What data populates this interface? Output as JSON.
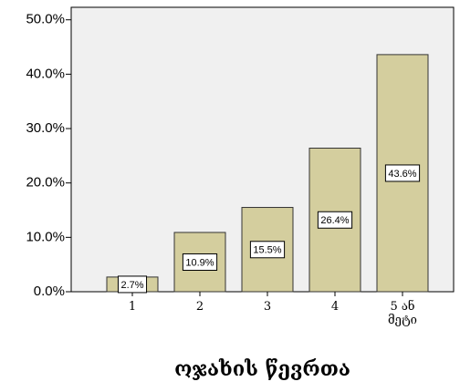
{
  "chart_data": {
    "type": "bar",
    "x_label": "ოჯახის წევრთა",
    "categories": [
      "1",
      "2",
      "3",
      "4",
      "5 ან მეტი"
    ],
    "values": [
      2.7,
      10.9,
      15.5,
      26.4,
      43.6
    ],
    "value_labels": [
      "2.7%",
      "10.9%",
      "15.5%",
      "26.4%",
      "43.6%"
    ],
    "color": "#d4ce9e",
    "ylim": [
      0,
      52.3
    ],
    "yticks": [
      {
        "value": 0,
        "label": "0.0%"
      },
      {
        "value": 10,
        "label": "10.0%"
      },
      {
        "value": 20,
        "label": "20.0%"
      },
      {
        "value": 30,
        "label": "30.0%"
      },
      {
        "value": 40,
        "label": "40.0%"
      },
      {
        "value": 50,
        "label": "50.0%"
      }
    ]
  }
}
